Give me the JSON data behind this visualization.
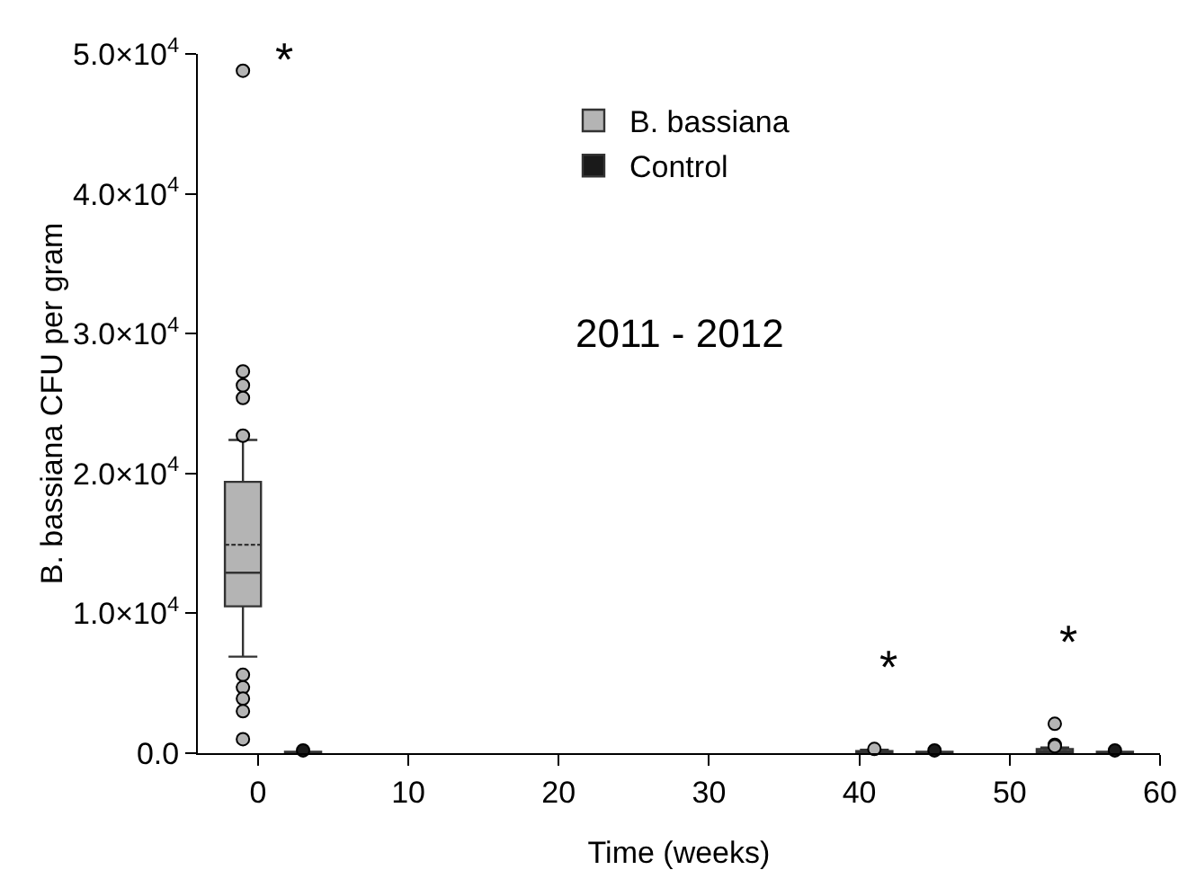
{
  "chart_data": {
    "type": "box",
    "xlabel": "Time (weeks)",
    "ylabel": "B. bassiana CFU per gram",
    "x": [
      -1,
      3,
      41,
      45,
      53,
      57
    ],
    "xlim": [
      -4,
      60
    ],
    "xticks": [
      0,
      10,
      20,
      30,
      40,
      50,
      60
    ],
    "ylim": [
      0,
      50000
    ],
    "yticks": [
      {
        "value": 0,
        "label": "0.0"
      },
      {
        "value": 10000,
        "label": "1.0×10$^{4}$"
      },
      {
        "value": 20000,
        "label": "2.0×10$^{4}$"
      },
      {
        "value": 30000,
        "label": "3.0×10$^{4}$"
      },
      {
        "value": 40000,
        "label": "4.0×10$^{4}$"
      },
      {
        "value": 50000,
        "label": "5.0×10$^{4}$"
      }
    ],
    "grid": false,
    "legend": "top",
    "marker": "circle",
    "series": [
      {
        "name": "B. bassiana",
        "color": "#b4b4b4",
        "boxes": [
          {
            "low": 6900,
            "q1": 10500,
            "median": 12900,
            "q3": 19400,
            "high": 22400,
            "mean": 14900,
            "outliers": [
              48800,
              27300,
              26300,
              25400,
              22700,
              5600,
              4700,
              3900,
              3000,
              1000
            ]
          },
          null,
          {
            "low": 0,
            "q1": 0,
            "median": 50,
            "q3": 150,
            "high": 250,
            "outliers": [
              300
            ]
          },
          null,
          {
            "low": 0,
            "q1": 0,
            "median": 100,
            "q3": 300,
            "high": 400,
            "outliers": [
              2100,
              600,
              500
            ]
          },
          null
        ]
      },
      {
        "name": "Control",
        "color": "#1a1a1a",
        "boxes": [
          null,
          {
            "low": 0,
            "q1": 0,
            "median": 0,
            "q3": 100,
            "high": 100,
            "outliers": [
              200
            ]
          },
          null,
          {
            "low": 0,
            "q1": 0,
            "median": 0,
            "q3": 100,
            "high": 100,
            "outliers": [
              200
            ]
          },
          null,
          {
            "low": 0,
            "q1": 0,
            "median": 0,
            "q3": 100,
            "high": 100,
            "outliers": [
              200
            ]
          }
        ]
      }
    ],
    "annotations": [
      "*",
      "*",
      "*",
      "2011 - 2012"
    ]
  }
}
